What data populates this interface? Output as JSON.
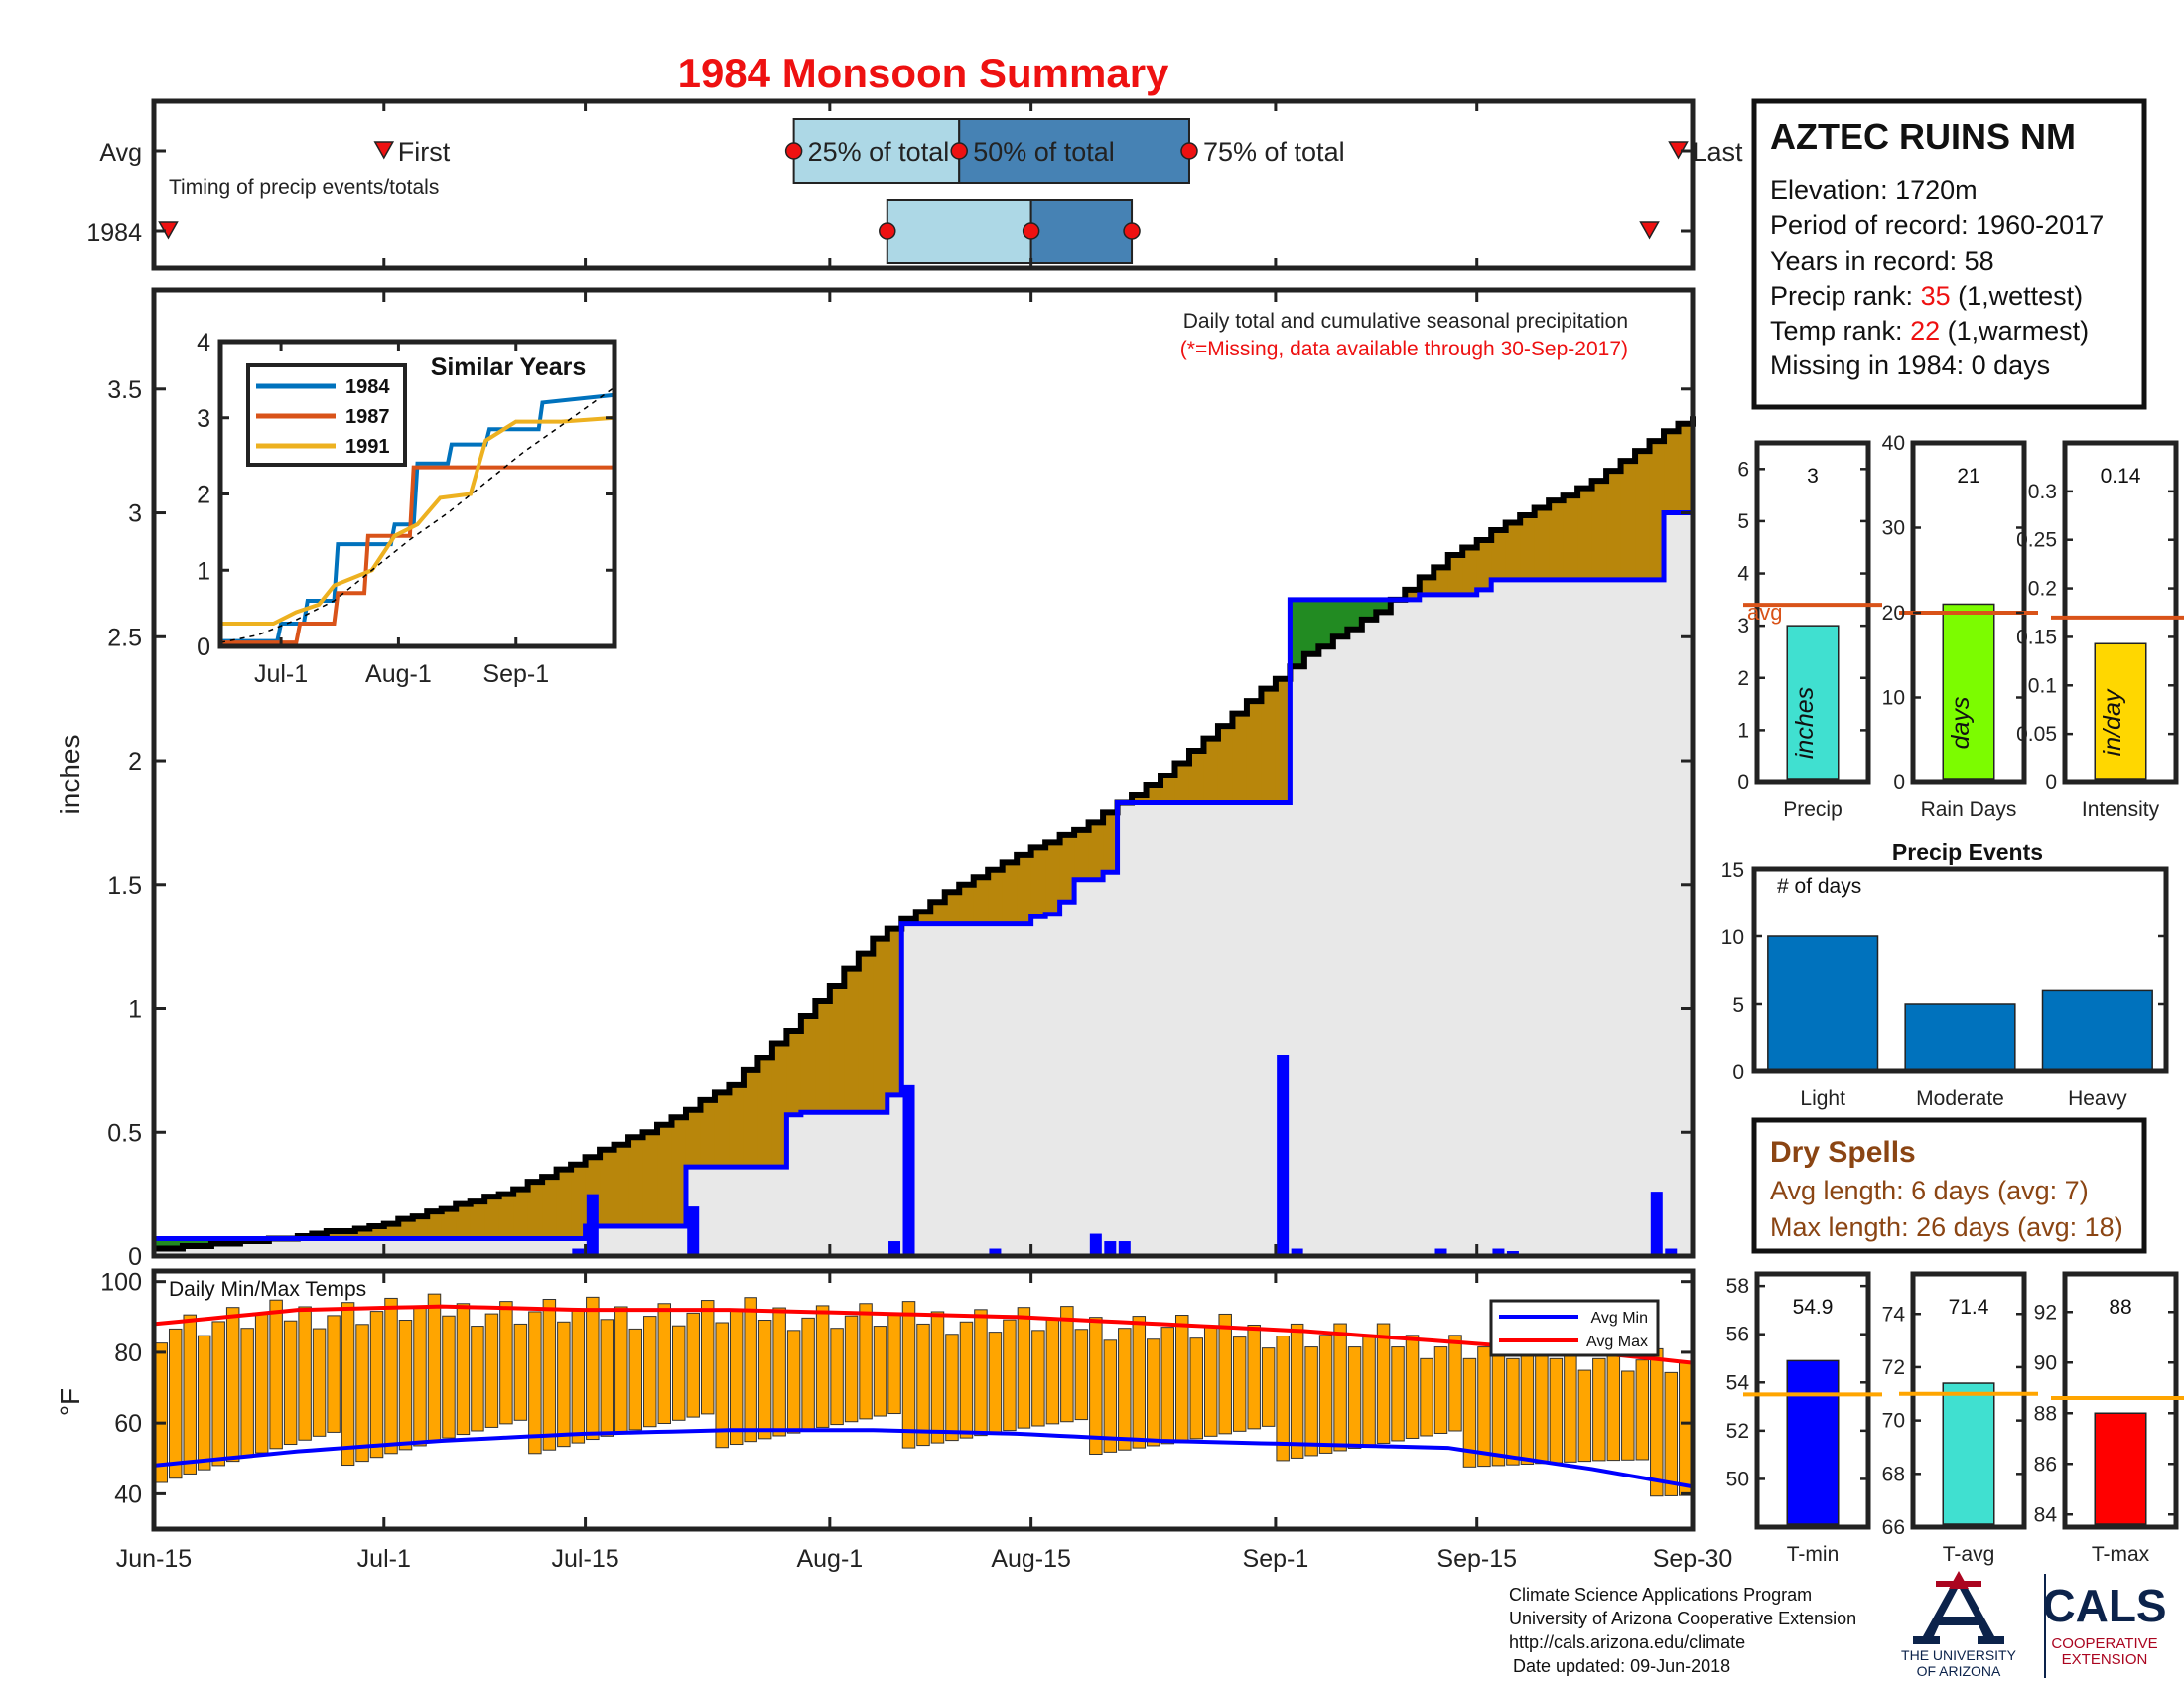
{
  "title": "1984 Monsoon Summary",
  "timing": {
    "row_avg": "Avg",
    "row_year": "1984",
    "first": "First",
    "last": "Last",
    "p25": "25% of total",
    "p50": "50% of total",
    "p75": "75% of total",
    "caption": "Timing of precip events/totals",
    "avg_days": {
      "first": 16,
      "p25": 44.5,
      "p50": 56,
      "p75": 72,
      "last": 106
    },
    "year_days": {
      "first": 1,
      "p25": 51,
      "p50": 61,
      "p75": 68,
      "last": 104
    }
  },
  "station": {
    "name": "AZTEC RUINS NM",
    "elevation_label": "Elevation: 1720m",
    "period_label": "Period of record: 1960-2017",
    "years_label": "Years in record: 58",
    "precip_rank_prefix": "Precip rank: ",
    "precip_rank": "35",
    "precip_rank_suffix": " (1,wettest)",
    "temp_rank_prefix": "Temp rank: ",
    "temp_rank": "22",
    "temp_rank_suffix": " (1,warmest)",
    "missing_label": "Missing in 1984: 0 days"
  },
  "main_chart": {
    "note": "Daily total and cumulative seasonal precipitation",
    "note_missing": "(*=Missing, data available through 30-Sep-2017)",
    "ylabel": "inches",
    "x_ticks": [
      "Jun-15",
      "Jul-1",
      "Jul-15",
      "Aug-1",
      "Aug-15",
      "Sep-1",
      "Sep-15",
      "Sep-30"
    ],
    "x_tick_days": [
      0,
      16,
      30,
      47,
      61,
      78,
      92,
      107
    ],
    "y_ticks": [
      "0",
      "0.5",
      "1",
      "1.5",
      "2",
      "2.5",
      "3",
      "3.5"
    ],
    "ylim": [
      0,
      3.9
    ],
    "colors": {
      "above": "#b8860b",
      "below": "#228b22",
      "fill": "#e8e8e8",
      "obs": "#0000ff",
      "avg": "#000000"
    }
  },
  "chart_data": [
    {
      "type": "line",
      "title": "Daily total and cumulative seasonal precipitation",
      "ylabel": "inches",
      "series": [
        {
          "name": "1984 cumulative",
          "x": [
            0,
            29,
            30,
            37,
            38,
            44,
            45,
            51,
            52,
            61,
            62,
            63,
            64,
            66,
            67,
            78,
            79,
            87,
            88,
            92,
            93,
            104,
            105,
            107
          ],
          "values": [
            0.07,
            0.07,
            0.12,
            0.36,
            0.36,
            0.57,
            0.58,
            0.65,
            1.34,
            1.37,
            1.38,
            1.43,
            1.52,
            1.55,
            1.83,
            1.83,
            2.65,
            2.65,
            2.67,
            2.69,
            2.73,
            2.73,
            3.0,
            3.0
          ]
        },
        {
          "name": "average cumulative",
          "x": [
            0,
            5,
            10,
            15,
            20,
            25,
            30,
            35,
            40,
            45,
            50,
            55,
            60,
            65,
            70,
            75,
            80,
            85,
            90,
            95,
            100,
            105,
            107
          ],
          "values": [
            0.03,
            0.05,
            0.08,
            0.12,
            0.19,
            0.27,
            0.4,
            0.53,
            0.69,
            0.97,
            1.28,
            1.47,
            1.62,
            1.75,
            1.94,
            2.19,
            2.43,
            2.6,
            2.83,
            2.99,
            3.13,
            3.33,
            3.39
          ]
        }
      ],
      "daily_bars": {
        "x": [
          29,
          30,
          37,
          51,
          52,
          58,
          65,
          66,
          67,
          78,
          79,
          89,
          93,
          94,
          104,
          105
        ],
        "values": [
          0.03,
          0.25,
          0.2,
          0.06,
          0.69,
          0.03,
          0.09,
          0.06,
          0.06,
          0.81,
          0.03,
          0.03,
          0.03,
          0.02,
          0.26,
          0.03
        ]
      }
    },
    {
      "type": "line",
      "title": "Similar Years",
      "x_ticks": [
        "Jul-1",
        "Aug-1",
        "Sep-1"
      ],
      "y_ticks": [
        "0",
        "1",
        "2",
        "3",
        "4"
      ],
      "ylim": [
        0,
        4
      ],
      "series": [
        {
          "name": "1984",
          "color": "#0072bd",
          "x": [
            0,
            15,
            16,
            22,
            23,
            30,
            31,
            45,
            46,
            51,
            52,
            60,
            61,
            70,
            71,
            84,
            85,
            104
          ],
          "values": [
            0.07,
            0.07,
            0.3,
            0.3,
            0.6,
            0.6,
            1.34,
            1.34,
            1.6,
            1.6,
            2.4,
            2.4,
            2.65,
            2.65,
            2.85,
            2.85,
            3.2,
            3.3
          ]
        },
        {
          "name": "1987",
          "color": "#d95319",
          "x": [
            0,
            20,
            21,
            30,
            31,
            38,
            39,
            50,
            51,
            60,
            61,
            104
          ],
          "values": [
            0.05,
            0.05,
            0.3,
            0.3,
            0.7,
            0.7,
            1.45,
            1.45,
            2.35,
            2.35,
            2.35,
            2.35
          ]
        },
        {
          "name": "1991",
          "color": "#edb120",
          "x": [
            0,
            14,
            20,
            26,
            30,
            40,
            46,
            52,
            58,
            66,
            70,
            78,
            90,
            104
          ],
          "values": [
            0.3,
            0.3,
            0.45,
            0.55,
            0.8,
            1.0,
            1.45,
            1.6,
            1.95,
            2.0,
            2.7,
            2.95,
            2.95,
            3.0
          ]
        },
        {
          "name": "average",
          "color": "#000000",
          "x": [
            0,
            10,
            20,
            30,
            40,
            50,
            60,
            70,
            80,
            90,
            104
          ],
          "values": [
            0.05,
            0.15,
            0.35,
            0.6,
            1.0,
            1.4,
            1.75,
            2.15,
            2.55,
            2.9,
            3.4
          ]
        }
      ]
    },
    {
      "type": "bar",
      "categories": [
        "Precip",
        "Rain Days",
        "Intensity"
      ],
      "value_labels": [
        "3",
        "21",
        "0.14"
      ],
      "values": [
        3,
        21,
        0.143
      ],
      "averages": [
        3.4,
        20,
        0.17
      ],
      "units": [
        "inches",
        "days",
        "in/day"
      ],
      "avg_label": "avg",
      "ylims": [
        [
          0,
          6.5
        ],
        [
          0,
          40
        ],
        [
          0,
          0.35
        ]
      ],
      "y_ticks": [
        [
          "0",
          "1",
          "2",
          "3",
          "4",
          "5",
          "6"
        ],
        [
          "0",
          "10",
          "20",
          "30",
          "40"
        ],
        [
          "0",
          "0.05",
          "0.1",
          "0.15",
          "0.2",
          "0.25",
          "0.3"
        ]
      ],
      "colors": [
        "#40e0d0",
        "#7cfc00",
        "#ffd700"
      ]
    },
    {
      "type": "bar",
      "title": "Precip Events",
      "ylabel": "# of days",
      "categories": [
        "Light",
        "Moderate",
        "Heavy"
      ],
      "values": [
        10,
        5,
        6
      ],
      "ylim": [
        0,
        15
      ],
      "y_ticks": [
        "0",
        "5",
        "10",
        "15"
      ],
      "color": "#0072bd"
    },
    {
      "type": "bar",
      "title": "Daily Min/Max Temps",
      "ylabel": "°F",
      "y_ticks": [
        "40",
        "60",
        "80",
        "100"
      ],
      "ylim": [
        30,
        103
      ],
      "legend": [
        "Avg Min",
        "Avg Max"
      ],
      "legend_position": "top-right",
      "avg_min": {
        "x": [
          0,
          10,
          20,
          30,
          40,
          50,
          60,
          70,
          80,
          90,
          100,
          107
        ],
        "values": [
          48,
          52,
          55,
          57,
          58,
          58,
          57,
          55,
          54,
          53,
          47,
          42
        ]
      },
      "avg_max": {
        "x": [
          0,
          10,
          20,
          30,
          40,
          50,
          60,
          70,
          80,
          90,
          100,
          107
        ],
        "values": [
          88,
          92,
          93,
          92,
          92,
          91,
          90,
          88,
          86,
          83,
          80,
          77
        ]
      }
    },
    {
      "type": "bar",
      "categories": [
        "T-min",
        "T-avg",
        "T-max"
      ],
      "value_labels": [
        "54.9",
        "71.4",
        "88"
      ],
      "values": [
        54.9,
        71.4,
        88
      ],
      "averages": [
        53.5,
        71,
        88.6
      ],
      "ylims": [
        [
          48,
          58.5
        ],
        [
          66,
          75.5
        ],
        [
          83.5,
          93.5
        ]
      ],
      "y_ticks": [
        [
          "50",
          "52",
          "54",
          "56",
          "58"
        ],
        [
          "66",
          "68",
          "70",
          "72",
          "74"
        ],
        [
          "84",
          "86",
          "88",
          "90",
          "92"
        ]
      ],
      "colors": [
        "#0000ff",
        "#40e0d0",
        "#ff0000"
      ],
      "avg_color": "#ffa500"
    }
  ],
  "dry_spells": {
    "title": "Dry Spells",
    "avg": "Avg length: 6 days (avg: 7)",
    "max": "Max length: 26 days (avg: 18)"
  },
  "footer": {
    "line1": "Climate Science Applications Program",
    "line2": "University of Arizona Cooperative Extension",
    "line3": "http://cals.arizona.edu/climate",
    "line4": "Date updated: 09-Jun-2018",
    "ua_name1": "THE UNIVERSITY",
    "ua_name2": "OF ARIZONA",
    "cals": "CALS",
    "cals_sub1": "COOPERATIVE",
    "cals_sub2": "EXTENSION"
  }
}
